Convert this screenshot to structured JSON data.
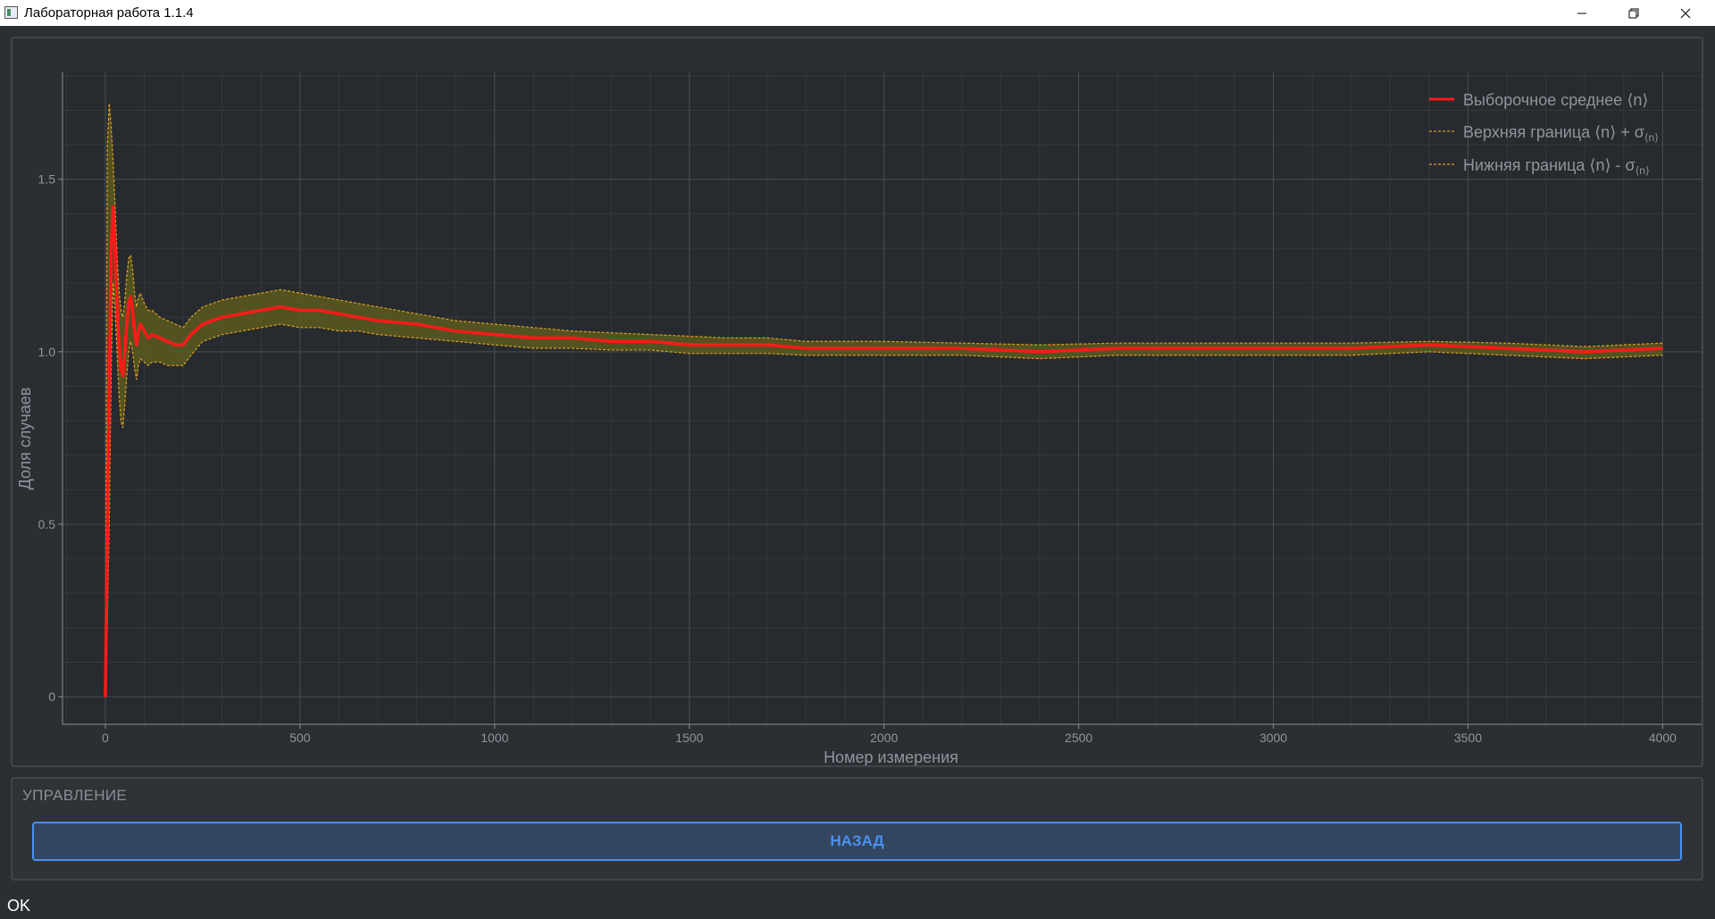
{
  "window": {
    "title": "Лабораторная работа 1.1.4",
    "icons": {
      "app": "app-icon",
      "minimize": "minimize-icon",
      "maximize": "restore-icon",
      "close": "close-icon"
    }
  },
  "chart_data": {
    "type": "line",
    "xlabel": "Номер измерения",
    "ylabel": "Доля случаев",
    "xlim": [
      -110,
      4100
    ],
    "ylim": [
      -0.08,
      1.81
    ],
    "x_ticks": [
      0,
      500,
      1000,
      1500,
      2000,
      2500,
      3000,
      3500,
      4000
    ],
    "x_tick_labels": [
      "0",
      "500",
      "1000",
      "1500",
      "2000",
      "2500",
      "3000",
      "3500",
      "4000"
    ],
    "y_ticks": [
      0,
      0.5,
      1.0,
      1.5
    ],
    "y_tick_labels": [
      "0",
      "0.5",
      "1.0",
      "1.5"
    ],
    "grid": true,
    "legend_position": "top-right",
    "series": [
      {
        "name": "Выборочное среднее ⟨n⟩",
        "color": "#ff1a1a",
        "style": "solid",
        "x": [
          0,
          5,
          10,
          15,
          20,
          25,
          30,
          35,
          40,
          45,
          50,
          55,
          60,
          65,
          70,
          75,
          80,
          85,
          90,
          100,
          110,
          120,
          140,
          160,
          180,
          200,
          220,
          250,
          300,
          350,
          400,
          450,
          500,
          550,
          600,
          650,
          700,
          800,
          900,
          1000,
          1100,
          1200,
          1300,
          1400,
          1500,
          1600,
          1700,
          1800,
          1900,
          2000,
          2200,
          2400,
          2600,
          2800,
          3000,
          3200,
          3400,
          3600,
          3800,
          4000
        ],
        "y": [
          0,
          0.45,
          0.9,
          1.3,
          1.42,
          1.3,
          1.15,
          1.02,
          0.95,
          0.93,
          1.0,
          1.08,
          1.14,
          1.16,
          1.12,
          1.06,
          1.02,
          1.06,
          1.08,
          1.06,
          1.04,
          1.05,
          1.04,
          1.03,
          1.02,
          1.02,
          1.05,
          1.08,
          1.1,
          1.11,
          1.12,
          1.13,
          1.12,
          1.12,
          1.11,
          1.1,
          1.09,
          1.08,
          1.06,
          1.05,
          1.04,
          1.04,
          1.03,
          1.03,
          1.02,
          1.02,
          1.02,
          1.01,
          1.01,
          1.01,
          1.01,
          1.0,
          1.01,
          1.01,
          1.01,
          1.01,
          1.02,
          1.01,
          1.0,
          1.01
        ]
      },
      {
        "name": "Верхняя граница ⟨n⟩ + σ",
        "subscript": "⟨n⟩",
        "color": "#e0a020",
        "style": "dashed",
        "x": [
          0,
          5,
          10,
          15,
          20,
          25,
          30,
          35,
          40,
          45,
          50,
          55,
          60,
          65,
          70,
          75,
          80,
          85,
          90,
          100,
          110,
          120,
          140,
          160,
          180,
          200,
          220,
          250,
          300,
          350,
          400,
          450,
          500,
          550,
          600,
          650,
          700,
          800,
          900,
          1000,
          1100,
          1200,
          1300,
          1400,
          1500,
          1600,
          1700,
          1800,
          1900,
          2000,
          2200,
          2400,
          2600,
          2800,
          3000,
          3200,
          3400,
          3600,
          3800,
          4000
        ],
        "y": [
          0,
          1.6,
          1.72,
          1.65,
          1.55,
          1.42,
          1.28,
          1.18,
          1.12,
          1.1,
          1.15,
          1.22,
          1.27,
          1.28,
          1.24,
          1.17,
          1.13,
          1.16,
          1.17,
          1.14,
          1.12,
          1.12,
          1.1,
          1.09,
          1.08,
          1.07,
          1.1,
          1.13,
          1.15,
          1.16,
          1.17,
          1.18,
          1.17,
          1.16,
          1.15,
          1.14,
          1.13,
          1.11,
          1.09,
          1.08,
          1.07,
          1.06,
          1.055,
          1.05,
          1.045,
          1.04,
          1.04,
          1.03,
          1.03,
          1.03,
          1.025,
          1.02,
          1.025,
          1.025,
          1.025,
          1.025,
          1.03,
          1.025,
          1.015,
          1.025
        ]
      },
      {
        "name": "Нижняя граница ⟨n⟩ - σ",
        "subscript": "⟨n⟩",
        "color": "#e0a020",
        "style": "dashed",
        "x": [
          0,
          5,
          10,
          15,
          20,
          25,
          30,
          35,
          40,
          45,
          50,
          55,
          60,
          65,
          70,
          75,
          80,
          85,
          90,
          100,
          110,
          120,
          140,
          160,
          180,
          200,
          220,
          250,
          300,
          350,
          400,
          450,
          500,
          550,
          600,
          650,
          700,
          800,
          900,
          1000,
          1100,
          1200,
          1300,
          1400,
          1500,
          1600,
          1700,
          1800,
          1900,
          2000,
          2200,
          2400,
          2600,
          2800,
          3000,
          3200,
          3400,
          3600,
          3800,
          4000
        ],
        "y": [
          0,
          0.2,
          0.5,
          0.95,
          1.2,
          1.12,
          1.0,
          0.88,
          0.8,
          0.78,
          0.85,
          0.93,
          1.0,
          1.03,
          1.0,
          0.95,
          0.92,
          0.96,
          0.98,
          0.97,
          0.96,
          0.97,
          0.97,
          0.96,
          0.96,
          0.96,
          0.99,
          1.03,
          1.05,
          1.06,
          1.07,
          1.08,
          1.07,
          1.07,
          1.06,
          1.06,
          1.05,
          1.04,
          1.03,
          1.02,
          1.01,
          1.01,
          1.005,
          1.005,
          0.995,
          0.995,
          0.995,
          0.99,
          0.99,
          0.99,
          0.99,
          0.98,
          0.99,
          0.99,
          0.99,
          0.99,
          1.0,
          0.99,
          0.98,
          0.99
        ]
      }
    ]
  },
  "controls": {
    "group_title": "УПРАВЛЕНИЕ",
    "back_label": "НАЗАД"
  },
  "status": {
    "text": "OK"
  }
}
